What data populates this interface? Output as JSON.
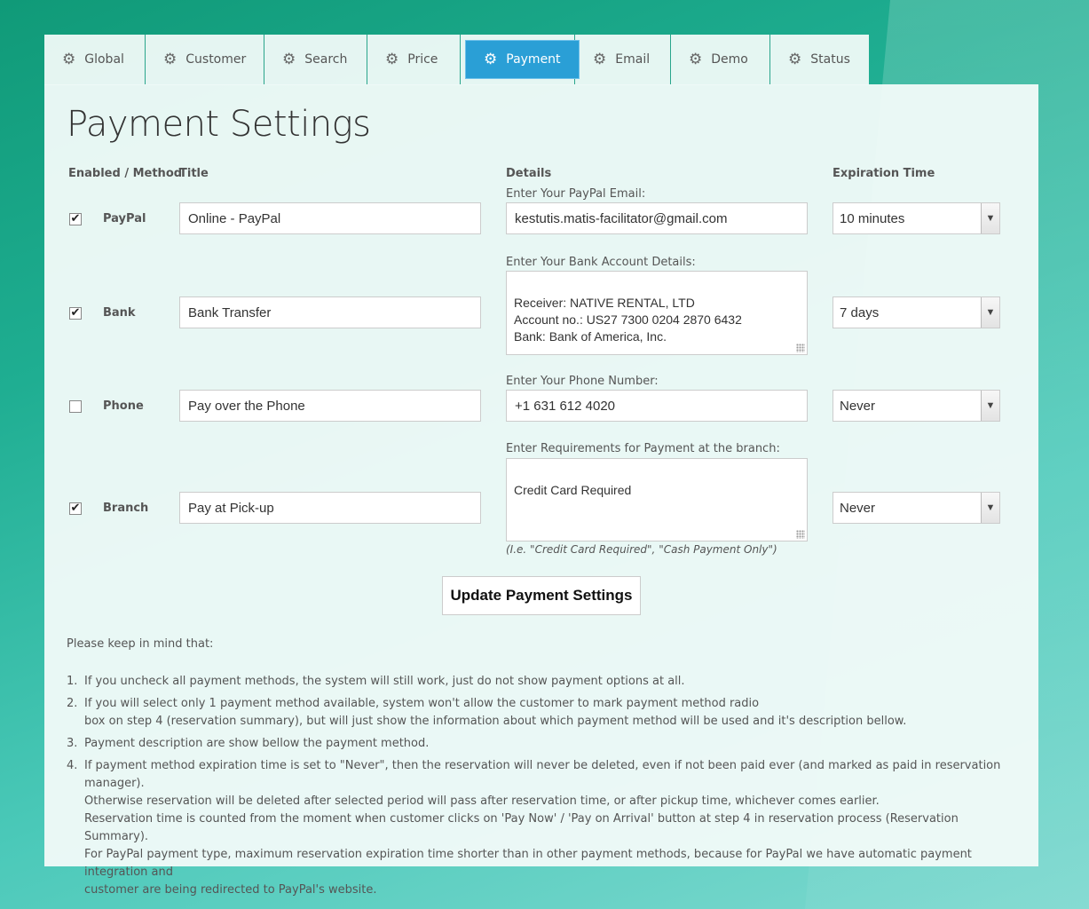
{
  "tabs": [
    {
      "label": "Global",
      "icon": "gear-icon"
    },
    {
      "label": "Customer",
      "icon": "gear-icon"
    },
    {
      "label": "Search",
      "icon": "gear-icon"
    },
    {
      "label": "Price",
      "icon": "gear-icon"
    },
    {
      "label": "Payment",
      "icon": "gear-icon",
      "active": true
    },
    {
      "label": "Email",
      "icon": "gear-icon"
    },
    {
      "label": "Demo",
      "icon": "gear-icon"
    },
    {
      "label": "Status",
      "icon": "gear-icon"
    }
  ],
  "page_title": "Payment Settings",
  "columns": {
    "enabled_method": "Enabled / Method",
    "title": "Title",
    "details": "Details",
    "expiration": "Expiration Time"
  },
  "methods": [
    {
      "name": "PayPal",
      "enabled": true,
      "title": "Online - PayPal",
      "details_label": "Enter Your PayPal Email:",
      "details": "kestutis.matis-facilitator@gmail.com",
      "expiration": "10 minutes"
    },
    {
      "name": "Bank",
      "enabled": true,
      "title": "Bank Transfer",
      "details_label": "Enter Your Bank Account Details:",
      "details": "Receiver: NATIVE RENTAL, LTD\nAccount no.: US27 7300 0204 2870 6432\nBank: Bank of America, Inc.",
      "expiration": "7 days"
    },
    {
      "name": "Phone",
      "enabled": false,
      "title": "Pay over the Phone",
      "details_label": "Enter Your Phone Number:",
      "details": "+1 631 612 4020",
      "expiration": "Never"
    },
    {
      "name": "Branch",
      "enabled": true,
      "title": "Pay at Pick-up",
      "details_label": "Enter Requirements for Payment at the branch:",
      "details": "Credit Card Required",
      "expiration": "Never"
    }
  ],
  "branch_hint": "(I.e. \"Credit Card Required\", \"Cash Payment Only\")",
  "update_button": "Update Payment Settings",
  "notes_intro": "Please keep in mind that:",
  "notes": [
    {
      "num": "1.",
      "lines": [
        "If you uncheck all payment methods, the system will still work, just do not show payment options at all."
      ]
    },
    {
      "num": "2.",
      "lines": [
        "If you will select only 1 payment method available, system won't allow the customer to mark payment method radio",
        "box on step 4 (reservation summary), but will just show the information about which payment method will be used and it's description bellow."
      ]
    },
    {
      "num": "3.",
      "lines": [
        "Payment description are show bellow the payment method."
      ]
    },
    {
      "num": "4.",
      "lines": [
        "If payment method expiration time is set to \"Never\", then the reservation will never be deleted, even if not been paid ever (and marked as paid in reservation manager).",
        "Otherwise reservation will be deleted after selected period will pass after reservation time, or after pickup time, whichever comes earlier.",
        "Reservation time is counted from the moment when customer clicks on 'Pay Now' / 'Pay on Arrival' button at step 4 in reservation process (Reservation Summary).",
        "For PayPal payment type, maximum reservation expiration time shorter than in other payment methods, because for PayPal we have automatic payment integration and",
        "customer are being redirected to PayPal's website."
      ]
    }
  ]
}
